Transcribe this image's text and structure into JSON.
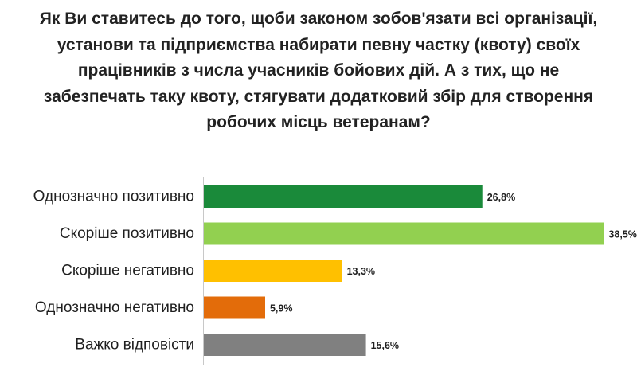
{
  "chart_data": {
    "type": "bar",
    "orientation": "horizontal",
    "title": "Як Ви ставитесь до того, щоби законом зобов'язати всі організації, установи та підприємства набирати певну частку (квоту) своїх працівників з числа учасників бойових дій.  А з тих, що не забезпечать таку квоту, стягувати додатковий збір для створення робочих місць ветеранам?",
    "categories": [
      "Однозначно позитивно",
      "Скоріше позитивно",
      "Скоріше негативно",
      "Однозначно негативно",
      "Важко відповісти"
    ],
    "values": [
      26.8,
      38.5,
      13.3,
      5.9,
      15.6
    ],
    "value_labels": [
      "26,8%",
      "38,5%",
      "13,3%",
      "5,9%",
      "15,6%"
    ],
    "colors": [
      "#1a8a3a",
      "#92d050",
      "#ffc000",
      "#e36c0a",
      "#808080"
    ],
    "xlim": [
      0,
      40
    ],
    "grid": false,
    "legend": "none"
  }
}
